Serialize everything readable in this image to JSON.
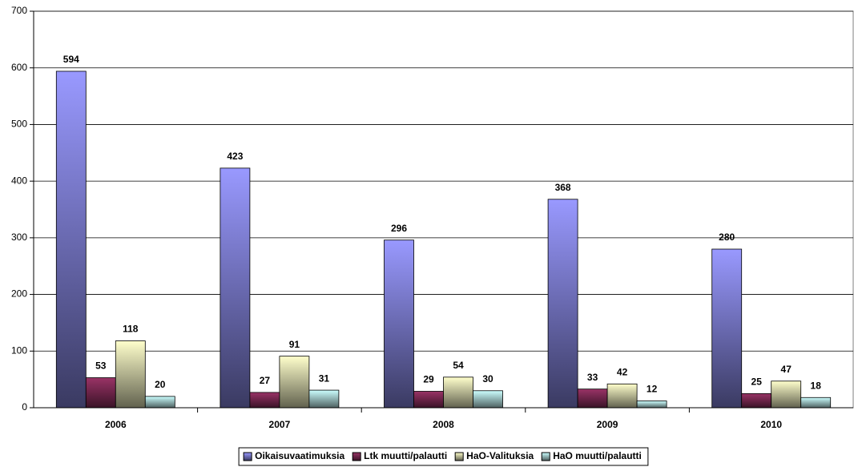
{
  "chart_data": {
    "type": "bar",
    "categories": [
      "2006",
      "2007",
      "2008",
      "2009",
      "2010"
    ],
    "series": [
      {
        "name": "Oikaisuvaatimuksia",
        "color": "#9999ff",
        "values": [
          594,
          423,
          296,
          368,
          280
        ]
      },
      {
        "name": "Ltk muutti/palautti",
        "color": "#993366",
        "values": [
          53,
          27,
          29,
          33,
          25
        ]
      },
      {
        "name": "HaO-Valituksia",
        "color": "#ffffcc",
        "values": [
          118,
          91,
          54,
          42,
          47
        ]
      },
      {
        "name": "HaO muutti/palautti",
        "color": "#ccffff",
        "values": [
          20,
          31,
          30,
          12,
          18
        ]
      }
    ],
    "ylim": [
      0,
      700
    ],
    "yticks": [
      0,
      100,
      200,
      300,
      400,
      500,
      600,
      700
    ],
    "grid": true,
    "legend": "bottom"
  }
}
